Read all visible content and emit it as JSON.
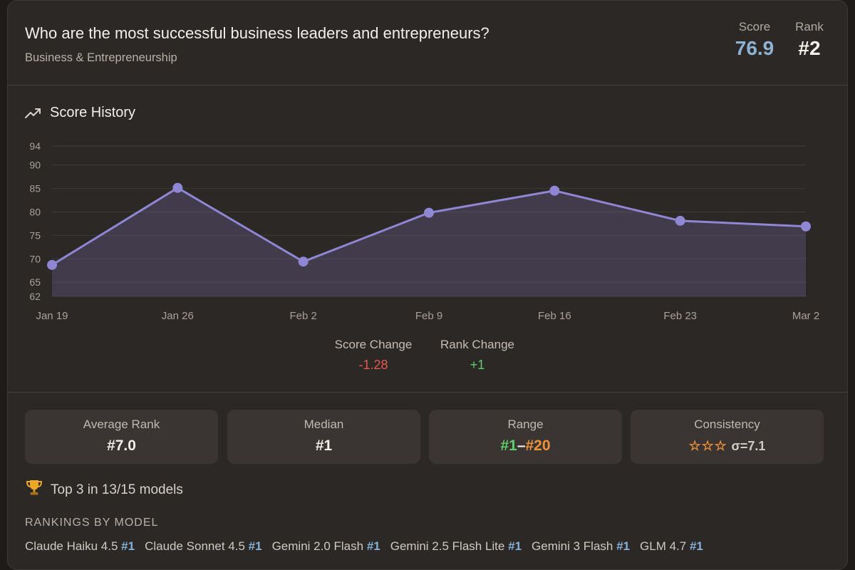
{
  "header": {
    "question": "Who are the most successful business leaders and entrepreneurs?",
    "category": "Business & Entrepreneurship",
    "score_label": "Score",
    "score_value": "76.9",
    "rank_label": "Rank",
    "rank_value": "#2"
  },
  "score_history": {
    "title": "Score History",
    "icon": "trending-up-icon"
  },
  "chart_data": {
    "type": "area",
    "title": "",
    "xlabel": "",
    "ylabel": "",
    "x": [
      "Jan 19",
      "Jan 26",
      "Feb 2",
      "Feb 9",
      "Feb 16",
      "Feb 23",
      "Mar 2"
    ],
    "y_ticks": [
      62,
      65,
      70,
      75,
      80,
      85,
      90,
      94
    ],
    "ylim": [
      62,
      94
    ],
    "grid": true,
    "series": [
      {
        "values": [
          68.7,
          85.1,
          69.4,
          79.8,
          84.5,
          78.1,
          76.9
        ],
        "color": "#8f86d4"
      }
    ]
  },
  "changes": {
    "score_label": "Score Change",
    "score_value": "-1.28",
    "rank_label": "Rank Change",
    "rank_value": "+1"
  },
  "stats": {
    "avg_rank_label": "Average Rank",
    "avg_rank_value": "#7.0",
    "median_label": "Median",
    "median_value": "#1",
    "range_label": "Range",
    "range_low": "#1",
    "range_sep": "–",
    "range_high": "#20",
    "consistency_label": "Consistency",
    "consistency_stars": "☆☆☆",
    "consistency_sigma": "σ=7.1"
  },
  "top3": {
    "icon": "trophy-icon",
    "text": "Top 3 in 13/15 models"
  },
  "rankings": {
    "title": "RANKINGS BY MODEL",
    "items": [
      {
        "model": "Claude Haiku 4.5",
        "rank": "#1"
      },
      {
        "model": "Claude Sonnet 4.5",
        "rank": "#1"
      },
      {
        "model": "Gemini 2.0 Flash",
        "rank": "#1"
      },
      {
        "model": "Gemini 2.5 Flash Lite",
        "rank": "#1"
      },
      {
        "model": "Gemini 3 Flash",
        "rank": "#1"
      },
      {
        "model": "GLM 4.7",
        "rank": "#1"
      }
    ]
  },
  "colors": {
    "accent_line": "#8f86d4",
    "score_blue": "#8db2d4",
    "negative": "#e35a4e",
    "positive": "#5fce6b",
    "orange": "#f0913a"
  }
}
